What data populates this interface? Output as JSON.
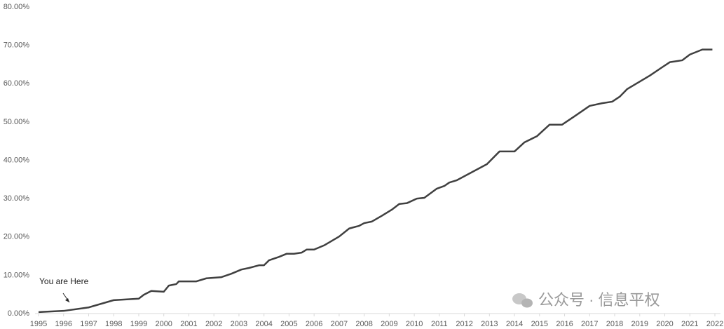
{
  "chart_data": {
    "type": "line",
    "annotation": "You are Here",
    "watermark": "公众号 · 信息平权",
    "x": [
      1995,
      1996,
      1997,
      1998,
      1999,
      1999.2,
      1999.5,
      2000,
      2000.2,
      2000.5,
      2000.6,
      2001.3,
      2001.7,
      2002.3,
      2002.7,
      2003.1,
      2003.4,
      2003.8,
      2004,
      2004.2,
      2004.6,
      2004.9,
      2005.2,
      2005.5,
      2005.7,
      2006,
      2006.4,
      2007,
      2007.4,
      2007.8,
      2008,
      2008.3,
      2008.7,
      2009.1,
      2009.4,
      2009.7,
      2010.1,
      2010.4,
      2010.9,
      2011.2,
      2011.4,
      2011.7,
      2012.9,
      2013.4,
      2014,
      2014.4,
      2014.9,
      2015.4,
      2015.9,
      2016.4,
      2017,
      2017.5,
      2017.9,
      2018.2,
      2018.5,
      2019.4,
      2019.9,
      2020.2,
      2020.7,
      2021,
      2021.5,
      2021.9
    ],
    "series": [
      {
        "color": "#404040",
        "values": [
          0.4,
          0.7,
          1.6,
          3.5,
          3.9,
          4.9,
          5.9,
          5.7,
          7.3,
          7.7,
          8.4,
          8.4,
          9.2,
          9.5,
          10.4,
          11.5,
          11.9,
          12.6,
          12.6,
          13.9,
          14.8,
          15.6,
          15.6,
          15.9,
          16.7,
          16.7,
          17.8,
          20.1,
          22.2,
          22.9,
          23.6,
          24.0,
          25.5,
          27.1,
          28.6,
          28.8,
          30.0,
          30.2,
          32.6,
          33.3,
          34.2,
          34.8,
          39.0,
          42.3,
          42.3,
          44.7,
          46.3,
          49.3,
          49.3,
          51.5,
          54.2,
          54.9,
          55.3,
          56.6,
          58.6,
          62.1,
          64.3,
          65.6,
          66.1,
          67.6,
          68.9,
          68.9
        ]
      }
    ],
    "xlim": [
      1995,
      2022
    ],
    "xticks": [
      1995,
      1996,
      1997,
      1998,
      1999,
      2000,
      2001,
      2002,
      2003,
      2004,
      2005,
      2006,
      2007,
      2008,
      2009,
      2010,
      2011,
      2012,
      2013,
      2014,
      2015,
      2016,
      2017,
      2018,
      2019,
      2020,
      2021,
      2022
    ],
    "ylim": [
      0,
      80
    ],
    "yticks": [
      {
        "value": 0,
        "label": "0.00%"
      },
      {
        "value": 10,
        "label": "10.00%"
      },
      {
        "value": 20,
        "label": "20.00%"
      },
      {
        "value": 30,
        "label": "30.00%"
      },
      {
        "value": 40,
        "label": "40.00%"
      },
      {
        "value": 50,
        "label": "50.00%"
      },
      {
        "value": 60,
        "label": "60.00%"
      },
      {
        "value": 70,
        "label": "70.00%"
      },
      {
        "value": 80,
        "label": "80.00%"
      }
    ]
  }
}
